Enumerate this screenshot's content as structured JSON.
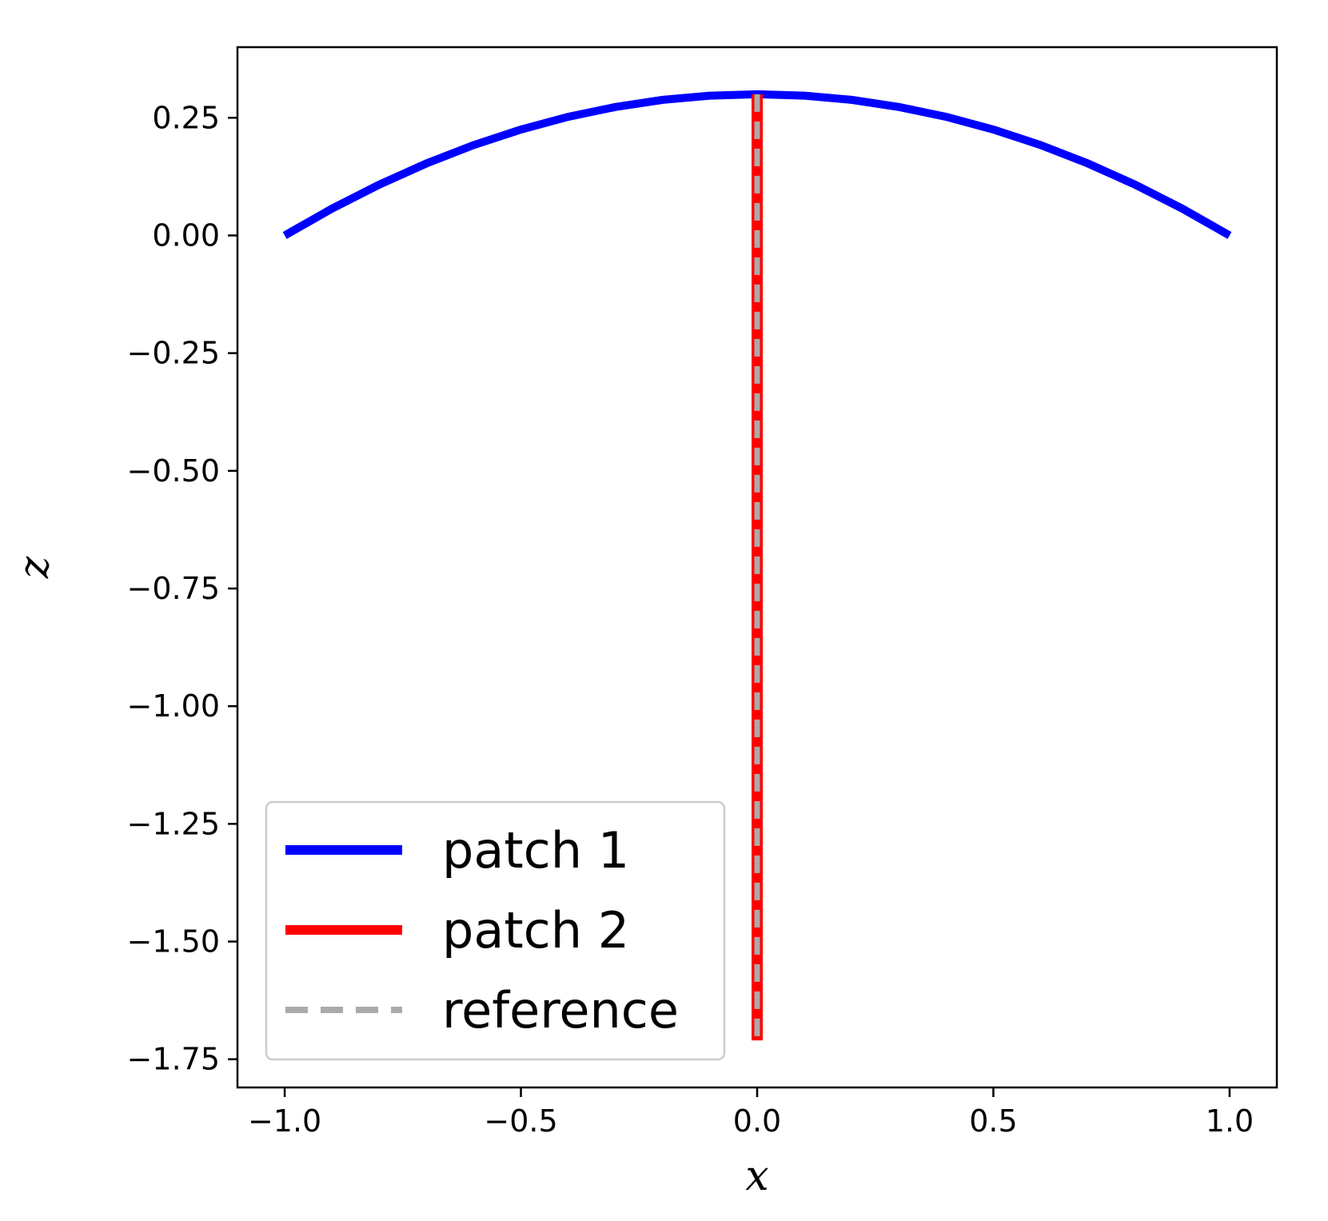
{
  "chart_data": {
    "type": "line",
    "title": "",
    "xlabel": "x",
    "ylabel": "z",
    "xlim": [
      -1.1,
      1.1
    ],
    "ylim": [
      -1.81,
      0.4
    ],
    "xticks": [
      -1.0,
      -0.5,
      0.0,
      0.5,
      1.0
    ],
    "xtick_labels": [
      "−1.0",
      "−0.5",
      "0.0",
      "0.5",
      "1.0"
    ],
    "yticks": [
      0.25,
      0.0,
      -0.25,
      -0.5,
      -0.75,
      -1.0,
      -1.25,
      -1.5,
      -1.75
    ],
    "ytick_labels": [
      "0.25",
      "0.00",
      "−0.25",
      "−0.50",
      "−0.75",
      "−1.00",
      "−1.25",
      "−1.50",
      "−1.75"
    ],
    "grid": false,
    "legend_position": "lower-left",
    "series": [
      {
        "name": "patch 1",
        "color": "#0000ff",
        "style": "solid",
        "x": [
          -1.0,
          -0.9,
          -0.8,
          -0.7,
          -0.6,
          -0.5,
          -0.4,
          -0.3,
          -0.2,
          -0.1,
          0.0,
          0.1,
          0.2,
          0.3,
          0.4,
          0.5,
          0.6,
          0.7,
          0.8,
          0.9,
          1.0
        ],
        "y": [
          0.0,
          0.057,
          0.108,
          0.153,
          0.192,
          0.225,
          0.252,
          0.273,
          0.288,
          0.297,
          0.3,
          0.297,
          0.288,
          0.273,
          0.252,
          0.225,
          0.192,
          0.153,
          0.108,
          0.057,
          0.0
        ]
      },
      {
        "name": "patch 2",
        "color": "#ff0000",
        "style": "solid",
        "x": [
          0.0,
          0.0
        ],
        "y": [
          0.3,
          -1.71
        ]
      },
      {
        "name": "reference",
        "color": "#aaaaaa",
        "style": "dashed",
        "x": [
          0.0,
          0.0
        ],
        "y": [
          0.3,
          -1.71
        ]
      }
    ]
  }
}
